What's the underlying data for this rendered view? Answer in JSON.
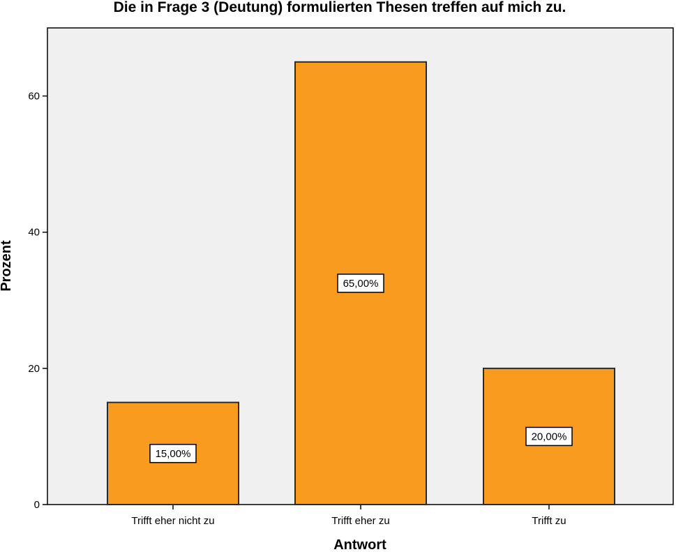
{
  "chart_data": {
    "type": "bar",
    "title": "Die in Frage 3 (Deutung) formulierten Thesen treffen auf mich zu.",
    "xlabel": "Antwort",
    "ylabel": "Prozent",
    "categories": [
      "Trifft eher nicht zu",
      "Trifft eher zu",
      "Trifft zu"
    ],
    "values": [
      15,
      65,
      20
    ],
    "data_labels": [
      "15,00%",
      "65,00%",
      "20,00%"
    ],
    "yticks": [
      0,
      20,
      40,
      60
    ],
    "ylim": [
      0,
      70
    ],
    "grid": false,
    "legend": "none",
    "colors": {
      "bar_fill": "#F99B1E",
      "bar_stroke": "#2B2B2B",
      "plot_background": "#F0F0F0",
      "axis": "#000000"
    }
  }
}
